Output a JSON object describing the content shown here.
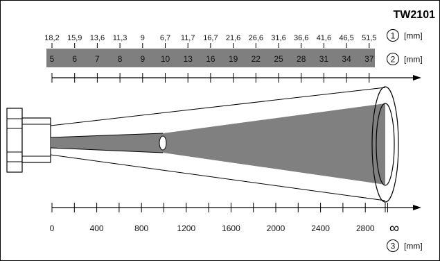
{
  "model": "TW2101",
  "scale_1": {
    "key": "1",
    "unit": "[mm]",
    "labels": [
      "18,2",
      "15,9",
      "13,6",
      "11,3",
      "9",
      "6,7",
      "11,7",
      "16,7",
      "21,6",
      "26,6",
      "31,6",
      "36,6",
      "41,6",
      "46,5",
      "51,5"
    ]
  },
  "scale_2": {
    "key": "2",
    "unit": "[mm]",
    "labels": [
      "5",
      "6",
      "7",
      "8",
      "9",
      "10",
      "13",
      "16",
      "19",
      "22",
      "25",
      "28",
      "31",
      "34",
      "37"
    ]
  },
  "scale_3": {
    "key": "3",
    "unit": "[mm]",
    "labels": [
      "0",
      "400",
      "800",
      "1200",
      "1600",
      "2000",
      "2400",
      "2800"
    ],
    "infinity": "∞"
  },
  "colors": {
    "band": "#7f7f7f",
    "beam": "#808080",
    "line": "#000000"
  }
}
